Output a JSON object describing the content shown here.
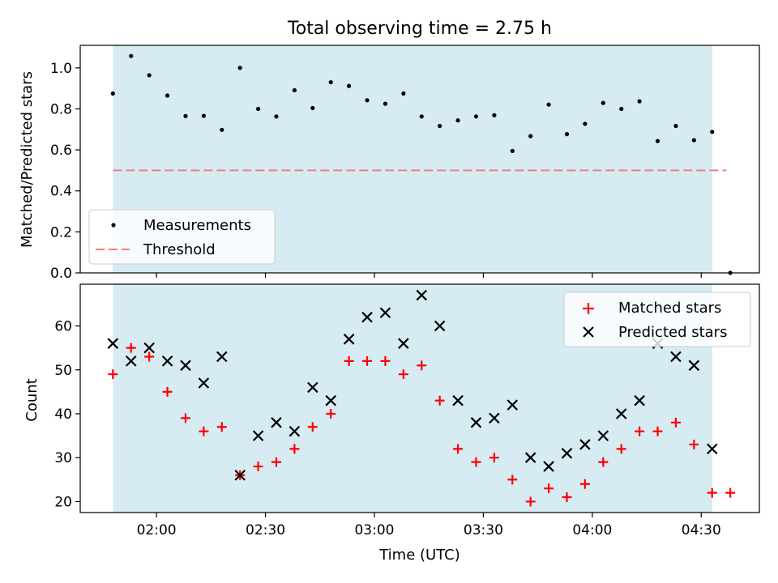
{
  "title": "Total observing time = 2.75 h",
  "chart_data": [
    {
      "type": "scatter",
      "ylabel": "Matched/Predicted stars",
      "ylim": [
        0,
        1.11
      ],
      "yticks": [
        "0.0",
        "0.2",
        "0.4",
        "0.6",
        "0.8",
        "1.0"
      ],
      "ytick_values": [
        0,
        0.2,
        0.4,
        0.6,
        0.8,
        1.0
      ],
      "shaded_region": {
        "x_start": "01:48",
        "x_end": "04:33",
        "color": "#add8e6"
      },
      "legend_position": "lower-left",
      "series": [
        {
          "name": "Measurements",
          "marker": "dot",
          "color": "#000000",
          "x": [
            "01:48",
            "01:53",
            "01:58",
            "02:03",
            "02:08",
            "02:13",
            "02:18",
            "02:23",
            "02:28",
            "02:33",
            "02:38",
            "02:43",
            "02:48",
            "02:53",
            "02:58",
            "03:03",
            "03:08",
            "03:13",
            "03:18",
            "03:23",
            "03:28",
            "03:33",
            "03:38",
            "03:43",
            "03:48",
            "03:53",
            "03:58",
            "04:03",
            "04:08",
            "04:13",
            "04:18",
            "04:23",
            "04:28",
            "04:33",
            "04:38"
          ],
          "y": [
            0.875,
            1.058,
            0.964,
            0.865,
            0.765,
            0.766,
            0.698,
            1.0,
            0.8,
            0.763,
            0.891,
            0.804,
            0.93,
            0.912,
            0.842,
            0.825,
            0.875,
            0.763,
            0.717,
            0.744,
            0.763,
            0.769,
            0.595,
            0.667,
            0.821,
            0.677,
            0.727,
            0.829,
            0.8,
            0.837,
            0.643,
            0.717,
            0.647,
            0.688,
            0.0
          ]
        },
        {
          "name": "Threshold",
          "style": "dashed",
          "color": "#f08080",
          "x": [
            "01:48",
            "04:37"
          ],
          "y": [
            0.5,
            0.5
          ]
        }
      ]
    },
    {
      "type": "scatter",
      "xlabel": "Time (UTC)",
      "ylabel": "Count",
      "ylim": [
        17.5,
        69.5
      ],
      "yticks": [
        "20",
        "30",
        "40",
        "50",
        "60"
      ],
      "ytick_values": [
        20,
        30,
        40,
        50,
        60
      ],
      "xticks": [
        "02:00",
        "02:30",
        "03:00",
        "03:30",
        "04:00",
        "04:30"
      ],
      "xlim": [
        "01:39",
        "04:46"
      ],
      "shaded_region": {
        "x_start": "01:48",
        "x_end": "04:33",
        "color": "#add8e6"
      },
      "legend_position": "top-right",
      "series": [
        {
          "name": "Matched stars",
          "marker": "plus",
          "color": "#ff0000",
          "x": [
            "01:48",
            "01:53",
            "01:58",
            "02:03",
            "02:08",
            "02:13",
            "02:18",
            "02:23",
            "02:28",
            "02:33",
            "02:38",
            "02:43",
            "02:48",
            "02:53",
            "02:58",
            "03:03",
            "03:08",
            "03:13",
            "03:18",
            "03:23",
            "03:28",
            "03:33",
            "03:38",
            "03:43",
            "03:48",
            "03:53",
            "03:58",
            "04:03",
            "04:08",
            "04:13",
            "04:18",
            "04:23",
            "04:28",
            "04:33",
            "04:38"
          ],
          "y": [
            49,
            55,
            53,
            45,
            39,
            36,
            37,
            26,
            28,
            29,
            32,
            37,
            40,
            52,
            52,
            52,
            49,
            51,
            43,
            32,
            29,
            30,
            25,
            20,
            23,
            21,
            24,
            29,
            32,
            36,
            36,
            38,
            33,
            22,
            22
          ]
        },
        {
          "name": "Predicted stars",
          "marker": "x",
          "color": "#000000",
          "x": [
            "01:48",
            "01:53",
            "01:58",
            "02:03",
            "02:08",
            "02:13",
            "02:18",
            "02:23",
            "02:28",
            "02:33",
            "02:38",
            "02:43",
            "02:48",
            "02:53",
            "02:58",
            "03:03",
            "03:08",
            "03:13",
            "03:18",
            "03:23",
            "03:28",
            "03:33",
            "03:38",
            "03:43",
            "03:48",
            "03:53",
            "03:58",
            "04:03",
            "04:08",
            "04:13",
            "04:18",
            "04:23",
            "04:28",
            "04:33"
          ],
          "y": [
            56,
            52,
            55,
            52,
            51,
            47,
            53,
            26,
            35,
            38,
            36,
            46,
            43,
            57,
            62,
            63,
            56,
            67,
            60,
            43,
            38,
            39,
            42,
            30,
            28,
            31,
            33,
            35,
            40,
            43,
            56,
            53,
            51,
            32
          ]
        }
      ]
    }
  ]
}
